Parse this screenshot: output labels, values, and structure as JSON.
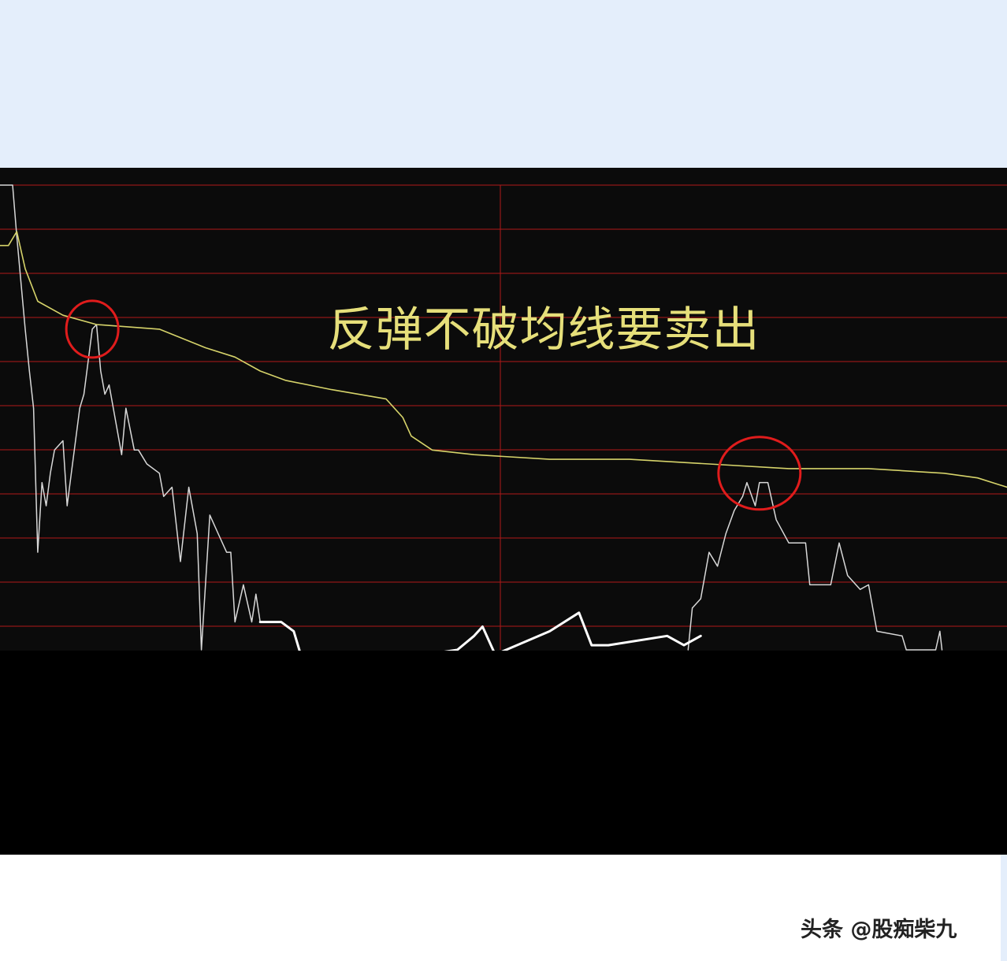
{
  "chart_data": {
    "type": "line",
    "title": "反弹不破均线要卖出",
    "xlabel": "",
    "ylabel": "",
    "grid": true,
    "colors": {
      "background": "#0b0b0b",
      "grid": "#b01818",
      "price": "#d8d8d8",
      "average": "#d6d36a",
      "annotation": "#e01c1c",
      "title": "#e6df7a",
      "hand_drawn": "#ffffff"
    },
    "series": [
      {
        "role": "price",
        "points": [
          [
            0,
            100
          ],
          [
            3,
            100
          ],
          [
            4,
            89
          ],
          [
            6,
            69
          ],
          [
            7,
            60
          ],
          [
            8,
            52
          ],
          [
            9,
            21
          ],
          [
            10,
            36
          ],
          [
            11,
            31
          ],
          [
            12,
            38
          ],
          [
            13,
            43
          ],
          [
            15,
            45
          ],
          [
            16,
            31
          ],
          [
            17,
            38
          ],
          [
            19,
            52
          ],
          [
            20,
            55
          ],
          [
            21,
            62
          ],
          [
            22,
            69
          ],
          [
            23,
            70
          ],
          [
            24,
            60
          ],
          [
            25,
            55
          ],
          [
            26,
            57
          ],
          [
            27,
            52
          ],
          [
            29,
            42
          ],
          [
            30,
            52
          ],
          [
            32,
            43
          ],
          [
            33,
            43
          ],
          [
            35,
            40
          ],
          [
            38,
            38
          ],
          [
            39,
            33
          ],
          [
            41,
            35
          ],
          [
            43,
            19
          ],
          [
            45,
            35
          ],
          [
            47,
            25
          ],
          [
            48,
            0
          ],
          [
            50,
            29
          ],
          [
            52,
            25
          ],
          [
            54,
            21
          ],
          [
            55,
            21
          ],
          [
            56,
            6
          ],
          [
            58,
            14
          ],
          [
            60,
            6
          ],
          [
            61,
            12
          ],
          [
            62,
            6
          ]
        ]
      },
      {
        "role": "price",
        "points": [
          [
            164,
            0
          ],
          [
            165,
            9
          ],
          [
            167,
            11
          ],
          [
            169,
            21
          ],
          [
            171,
            18
          ],
          [
            173,
            25
          ],
          [
            175,
            30
          ],
          [
            177,
            33
          ],
          [
            178,
            36
          ],
          [
            180,
            31
          ],
          [
            181,
            36
          ],
          [
            183,
            36
          ],
          [
            185,
            28
          ],
          [
            188,
            23
          ],
          [
            192,
            23
          ],
          [
            193,
            14
          ],
          [
            198,
            14
          ],
          [
            200,
            23
          ],
          [
            202,
            16
          ],
          [
            205,
            13
          ],
          [
            207,
            14
          ],
          [
            209,
            4
          ],
          [
            215,
            3
          ],
          [
            216,
            0
          ],
          [
            223,
            0
          ],
          [
            224,
            4
          ],
          [
            224.5,
            0
          ]
        ]
      },
      {
        "role": "average",
        "points": [
          [
            0,
            87
          ],
          [
            2,
            87
          ],
          [
            4,
            90
          ],
          [
            6,
            82
          ],
          [
            9,
            75
          ],
          [
            15,
            72
          ],
          [
            23,
            70
          ],
          [
            38,
            69
          ],
          [
            49,
            65
          ],
          [
            56,
            63
          ],
          [
            62,
            60
          ],
          [
            68,
            58
          ],
          [
            79,
            56
          ],
          [
            92,
            54
          ],
          [
            96,
            50
          ],
          [
            98,
            46
          ],
          [
            103,
            43
          ],
          [
            113,
            42
          ],
          [
            131,
            41
          ],
          [
            150,
            41
          ],
          [
            169,
            40
          ],
          [
            188,
            39
          ],
          [
            207,
            39
          ],
          [
            225,
            38
          ],
          [
            233,
            37
          ],
          [
            240,
            35
          ]
        ]
      },
      {
        "role": "hand-drawn",
        "points": [
          [
            62,
            6
          ],
          [
            67,
            6
          ],
          [
            70,
            4
          ],
          [
            72,
            -2
          ],
          [
            94,
            -2
          ],
          [
            109,
            0
          ],
          [
            113,
            3
          ],
          [
            115,
            5
          ],
          [
            118,
            -1
          ],
          [
            131,
            4
          ],
          [
            138,
            8
          ],
          [
            141,
            1
          ],
          [
            145,
            1
          ],
          [
            159,
            3
          ],
          [
            163,
            1
          ],
          [
            167,
            3
          ]
        ]
      }
    ],
    "annotations": [
      {
        "type": "circle",
        "at": [
          22,
          69
        ]
      },
      {
        "type": "circle",
        "at": [
          181,
          38
        ]
      }
    ],
    "xlim": [
      0,
      240
    ],
    "ylim": [
      0,
      100
    ]
  },
  "watermark": "头条 @股痴柴九"
}
